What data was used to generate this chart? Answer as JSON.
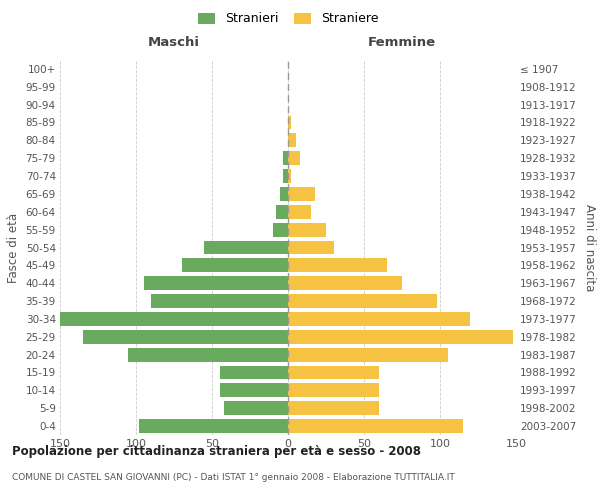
{
  "age_groups": [
    "0-4",
    "5-9",
    "10-14",
    "15-19",
    "20-24",
    "25-29",
    "30-34",
    "35-39",
    "40-44",
    "45-49",
    "50-54",
    "55-59",
    "60-64",
    "65-69",
    "70-74",
    "75-79",
    "80-84",
    "85-89",
    "90-94",
    "95-99",
    "100+"
  ],
  "birth_years": [
    "2003-2007",
    "1998-2002",
    "1993-1997",
    "1988-1992",
    "1983-1987",
    "1978-1982",
    "1973-1977",
    "1968-1972",
    "1963-1967",
    "1958-1962",
    "1953-1957",
    "1948-1952",
    "1943-1947",
    "1938-1942",
    "1933-1937",
    "1928-1932",
    "1923-1927",
    "1918-1922",
    "1913-1917",
    "1908-1912",
    "≤ 1907"
  ],
  "maschi": [
    98,
    42,
    45,
    45,
    105,
    135,
    150,
    90,
    95,
    70,
    55,
    10,
    8,
    5,
    3,
    3,
    0,
    0,
    0,
    0,
    0
  ],
  "femmine": [
    115,
    60,
    60,
    60,
    105,
    148,
    120,
    98,
    75,
    65,
    30,
    25,
    15,
    18,
    2,
    8,
    5,
    2,
    0,
    0,
    0
  ],
  "male_color": "#6aaa5e",
  "female_color": "#f5c242",
  "center_line_color": "#888888",
  "grid_color": "#cccccc",
  "title_main": "Popolazione per cittadinanza straniera per età e sesso - 2008",
  "title_sub": "COMUNE DI CASTEL SAN GIOVANNI (PC) - Dati ISTAT 1° gennaio 2008 - Elaborazione TUTTITALIA.IT",
  "xlabel_left": "Maschi",
  "xlabel_right": "Femmine",
  "ylabel_left": "Fasce di età",
  "ylabel_right": "Anni di nascita",
  "legend_male": "Stranieri",
  "legend_female": "Straniere",
  "xlim": 150,
  "background_color": "#ffffff"
}
